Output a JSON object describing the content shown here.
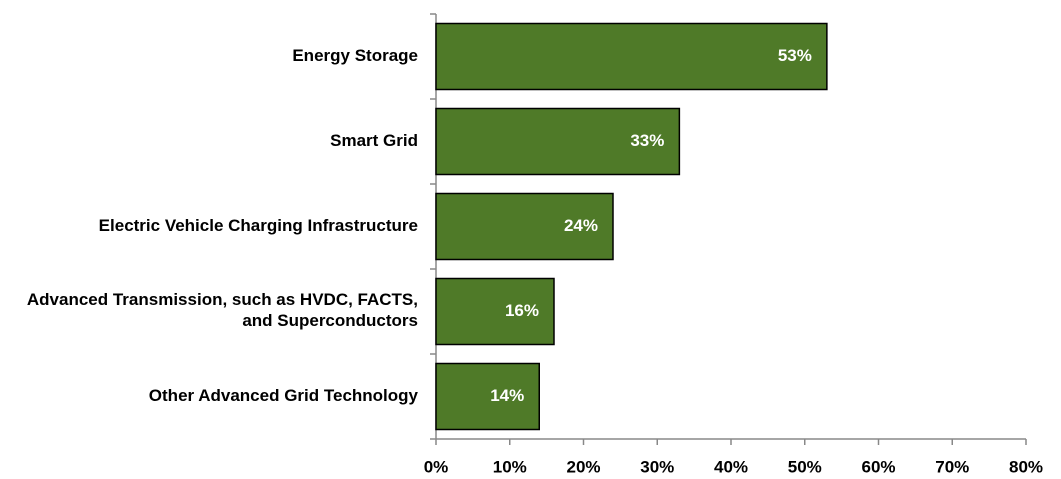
{
  "chart_data": {
    "type": "hbar",
    "categories": [
      "Energy Storage",
      "Smart Grid",
      "Electric Vehicle Charging Infrastructure",
      "Advanced Transmission, such as HVDC, FACTS, and Superconductors",
      "Other Advanced Grid Technology"
    ],
    "values": [
      53,
      33,
      24,
      16,
      14
    ],
    "value_labels": [
      "53%",
      "33%",
      "24%",
      "16%",
      "14%"
    ],
    "color": "#4f7a28",
    "xlim": [
      0,
      80
    ],
    "xticks": [
      {
        "value": 0,
        "label": "0%"
      },
      {
        "value": 10,
        "label": "10%"
      },
      {
        "value": 20,
        "label": "20%"
      },
      {
        "value": 30,
        "label": "30%"
      },
      {
        "value": 40,
        "label": "40%"
      },
      {
        "value": 50,
        "label": "50%"
      },
      {
        "value": 60,
        "label": "60%"
      },
      {
        "value": 70,
        "label": "70%"
      },
      {
        "value": 80,
        "label": "80%"
      }
    ],
    "grid": false
  }
}
